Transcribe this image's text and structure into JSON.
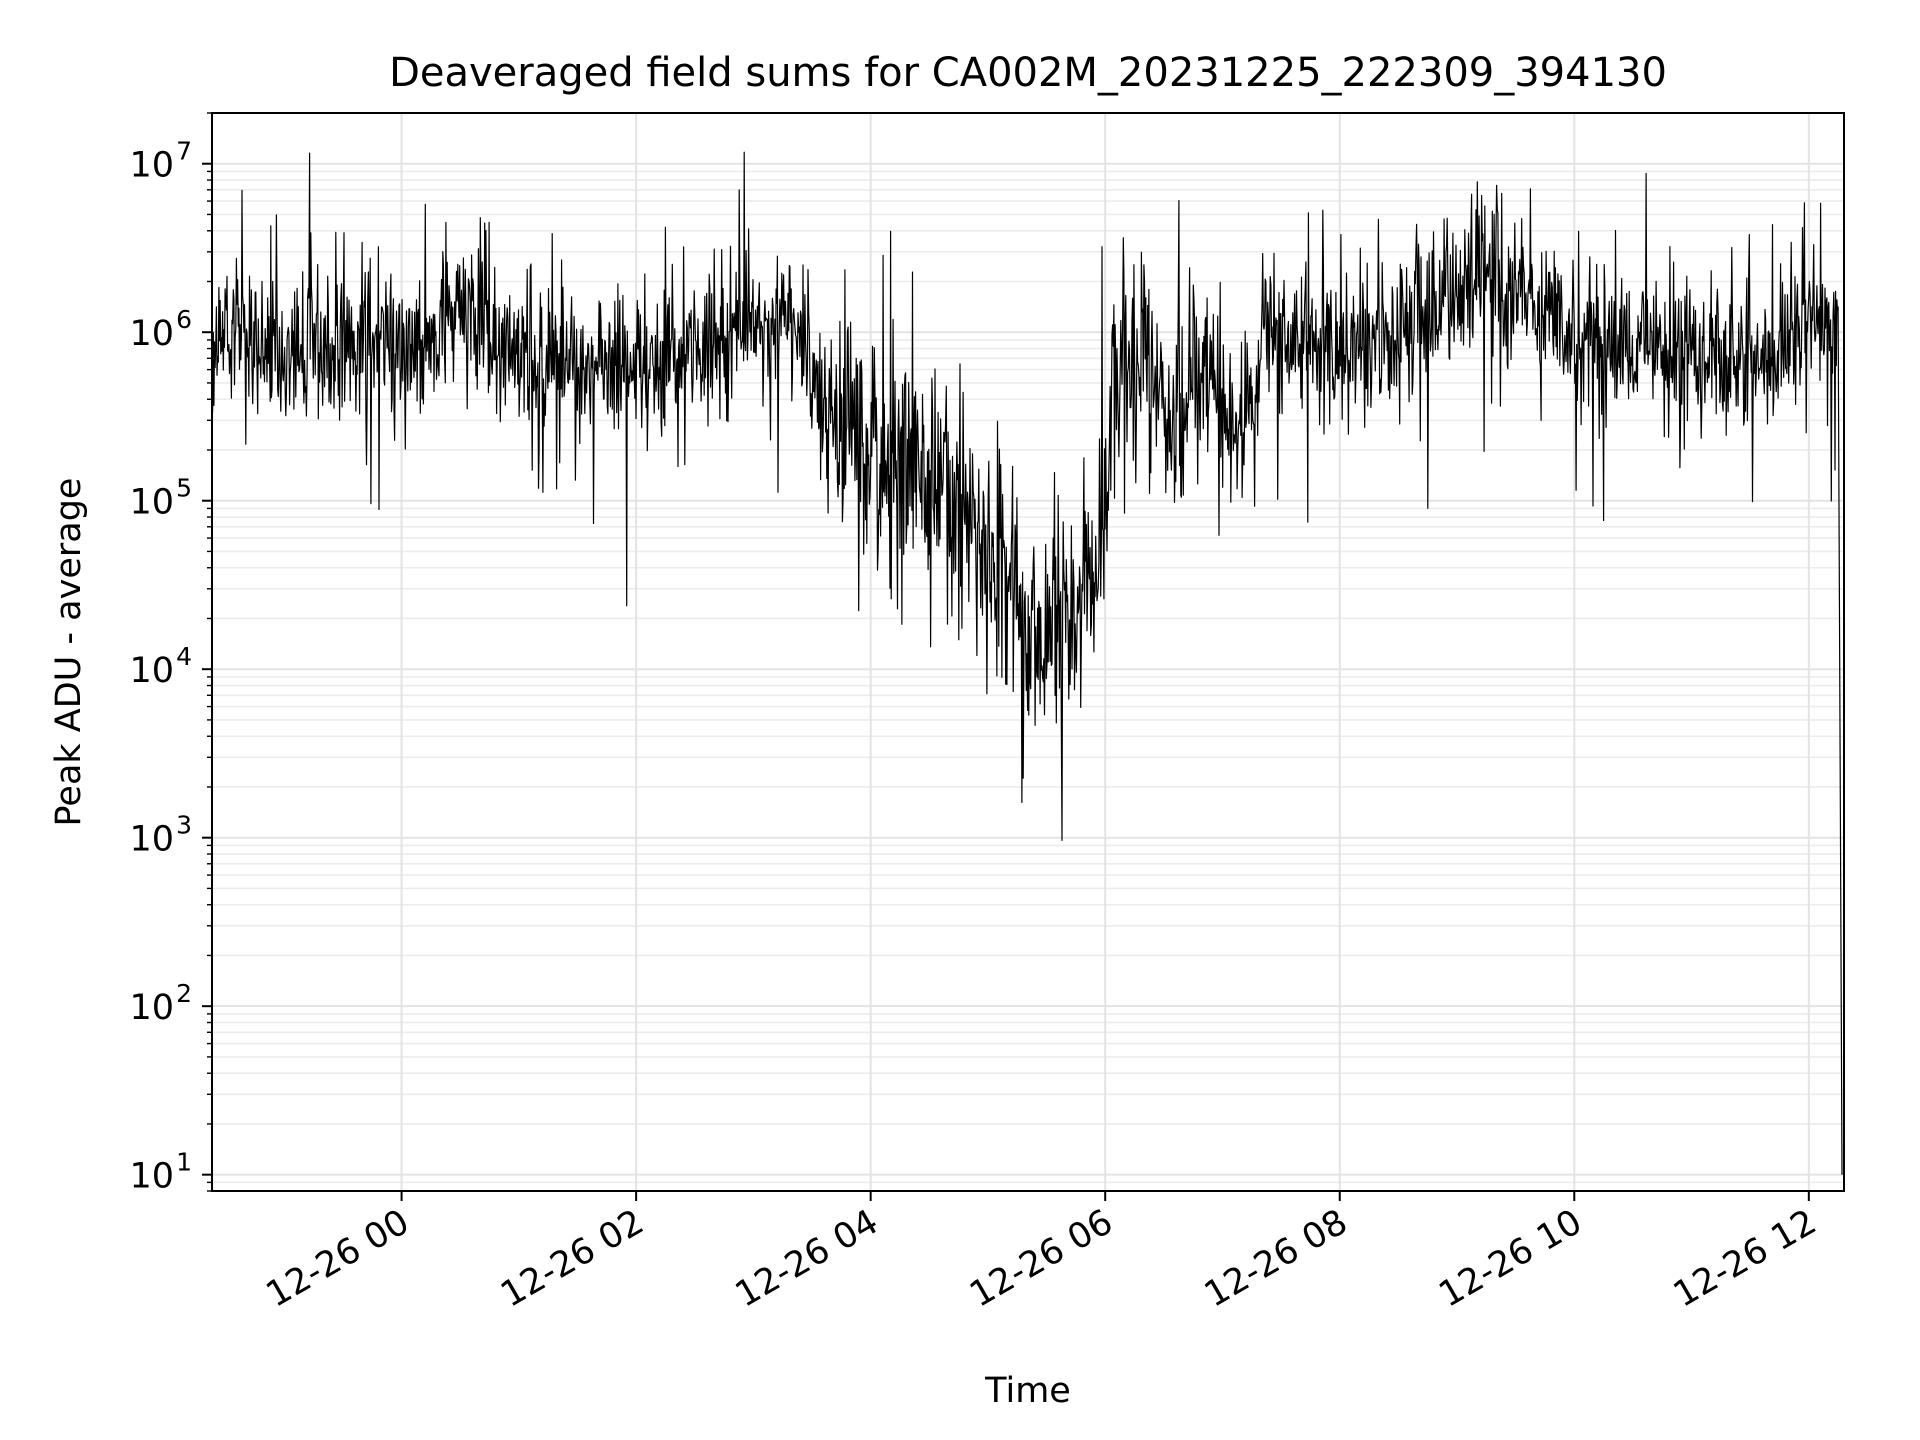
{
  "chart_data": {
    "type": "line",
    "title": "Deaveraged field sums for CA002M_20231225_222309_394130",
    "xlabel": "Time",
    "ylabel": "Peak ADU - average",
    "yscale": "log",
    "xlim": [
      "2025-12-25 22:23",
      "2025-12-26 12:18"
    ],
    "ylim": [
      8,
      20000000
    ],
    "grid": true,
    "x_tick_labels": [
      "12-26 00",
      "12-26 02",
      "12-26 04",
      "12-26 06",
      "12-26 08",
      "12-26 10",
      "12-26 12"
    ],
    "x_tick_times": [
      "2025-12-26 00:00",
      "2025-12-26 02:00",
      "2025-12-26 04:00",
      "2025-12-26 06:00",
      "2025-12-26 08:00",
      "2025-12-26 10:00",
      "2025-12-26 12:00"
    ],
    "y_tick_labels": [
      {
        "base": "10",
        "exp": "1",
        "value": 10
      },
      {
        "base": "10",
        "exp": "2",
        "value": 100
      },
      {
        "base": "10",
        "exp": "3",
        "value": 1000
      },
      {
        "base": "10",
        "exp": "4",
        "value": 10000
      },
      {
        "base": "10",
        "exp": "5",
        "value": 100000
      },
      {
        "base": "10",
        "exp": "6",
        "value": 1000000
      },
      {
        "base": "10",
        "exp": "7",
        "value": 10000000
      }
    ],
    "series": [
      {
        "color": "#000000",
        "points": [
          [
            "2025-12-25 22:23",
            700000
          ],
          [
            "2025-12-25 22:30",
            1200000
          ],
          [
            "2025-12-25 22:40",
            1000000
          ],
          [
            "2025-12-25 23:00",
            700000
          ],
          [
            "2025-12-25 23:30",
            900000
          ],
          [
            "2025-12-26 00:00",
            900000
          ],
          [
            "2025-12-26 00:30",
            1200000
          ],
          [
            "2025-12-26 01:00",
            800000
          ],
          [
            "2025-12-26 01:30",
            700000
          ],
          [
            "2025-12-26 02:00",
            600000
          ],
          [
            "2025-12-26 02:30",
            700000
          ],
          [
            "2025-12-26 03:00",
            1100000
          ],
          [
            "2025-12-26 03:20",
            1300000
          ],
          [
            "2025-12-26 03:35",
            400000
          ],
          [
            "2025-12-26 04:00",
            150000
          ],
          [
            "2025-12-26 04:20",
            200000
          ],
          [
            "2025-12-26 04:40",
            150000
          ],
          [
            "2025-12-26 05:00",
            40000
          ],
          [
            "2025-12-26 05:20",
            15000
          ],
          [
            "2025-12-26 05:40",
            20000
          ],
          [
            "2025-12-26 05:55",
            30000
          ],
          [
            "2025-12-26 06:10",
            1000000
          ],
          [
            "2025-12-26 06:20",
            1000000
          ],
          [
            "2025-12-26 06:35",
            200000
          ],
          [
            "2025-12-26 06:50",
            700000
          ],
          [
            "2025-12-26 07:10",
            200000
          ],
          [
            "2025-12-26 07:20",
            900000
          ],
          [
            "2025-12-26 08:00",
            800000
          ],
          [
            "2025-12-26 08:30",
            1000000
          ],
          [
            "2025-12-26 09:00",
            2000000
          ],
          [
            "2025-12-26 09:30",
            1800000
          ],
          [
            "2025-12-26 10:00",
            900000
          ],
          [
            "2025-12-26 10:30",
            800000
          ],
          [
            "2025-12-26 11:00",
            800000
          ],
          [
            "2025-12-26 11:30",
            600000
          ],
          [
            "2025-12-26 12:00",
            1000000
          ],
          [
            "2025-12-26 12:15",
            1200000
          ],
          [
            "2025-12-26 12:17",
            10
          ]
        ]
      }
    ]
  }
}
